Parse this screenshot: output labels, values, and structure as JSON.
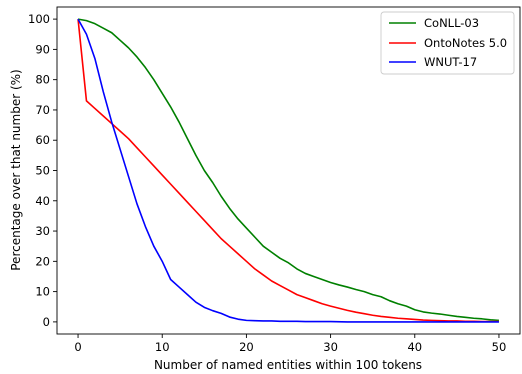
{
  "chart_data": {
    "type": "line",
    "title": "",
    "xlabel": "Number of named entities within 100 tokens",
    "ylabel": "Percentage over that number (%)",
    "xlim": [
      -2.5,
      52.5
    ],
    "ylim": [
      -4,
      104
    ],
    "x_ticks": [
      0,
      10,
      20,
      30,
      40,
      50
    ],
    "y_ticks": [
      0,
      10,
      20,
      30,
      40,
      50,
      60,
      70,
      80,
      90,
      100
    ],
    "grid": false,
    "legend_position": "top-right",
    "series": [
      {
        "name": "CoNLL-03",
        "color": "#008000",
        "x": [
          0,
          1,
          2,
          3,
          4,
          5,
          6,
          7,
          8,
          9,
          10,
          11,
          12,
          13,
          14,
          15,
          16,
          17,
          18,
          19,
          20,
          21,
          22,
          23,
          24,
          25,
          26,
          27,
          28,
          29,
          30,
          31,
          32,
          33,
          34,
          35,
          36,
          37,
          38,
          39,
          40,
          41,
          42,
          43,
          44,
          45,
          46,
          47,
          48,
          49,
          50
        ],
        "y": [
          100,
          99.5,
          98.5,
          97,
          95.5,
          93,
          90.5,
          87.5,
          84,
          80,
          75.5,
          71,
          66,
          60.5,
          55,
          50,
          46,
          41.5,
          37.5,
          34,
          31,
          28,
          25,
          23,
          21,
          19.5,
          17.5,
          16,
          15,
          14,
          13,
          12.2,
          11.5,
          10.7,
          10,
          9,
          8.3,
          7,
          6,
          5.2,
          4,
          3.3,
          2.9,
          2.6,
          2.2,
          1.8,
          1.5,
          1.2,
          1,
          0.7,
          0.5
        ]
      },
      {
        "name": "OntoNotes 5.0",
        "color": "#ff0000",
        "x": [
          0,
          1,
          2,
          3,
          4,
          5,
          6,
          7,
          8,
          9,
          10,
          11,
          12,
          13,
          14,
          15,
          16,
          17,
          18,
          19,
          20,
          21,
          22,
          23,
          24,
          25,
          26,
          27,
          28,
          29,
          30,
          31,
          32,
          33,
          34,
          35,
          36,
          37,
          38,
          39,
          40,
          41,
          42,
          43,
          44,
          45,
          46,
          47,
          48,
          49,
          50
        ],
        "y": [
          100,
          73,
          70.5,
          68,
          65.5,
          63,
          60.5,
          57.5,
          54.5,
          51.5,
          48.5,
          45.5,
          42.5,
          39.5,
          36.5,
          33.5,
          30.5,
          27.5,
          25,
          22.5,
          20,
          17.5,
          15.5,
          13.5,
          12,
          10.5,
          9,
          8,
          7,
          6,
          5.2,
          4.5,
          3.8,
          3.2,
          2.7,
          2.2,
          1.8,
          1.5,
          1.2,
          1,
          0.8,
          0.6,
          0.5,
          0.4,
          0.3,
          0.3,
          0.2,
          0.2,
          0.1,
          0.1,
          0.1
        ]
      },
      {
        "name": "WNUT-17",
        "color": "#0000ff",
        "x": [
          0,
          1,
          2,
          3,
          4,
          5,
          6,
          7,
          8,
          9,
          10,
          11,
          12,
          13,
          14,
          15,
          16,
          17,
          18,
          19,
          20,
          21,
          22,
          23,
          24,
          25,
          26,
          27,
          28,
          29,
          30,
          32,
          35,
          40,
          45,
          50
        ],
        "y": [
          100,
          95,
          87,
          76,
          66,
          57,
          48,
          39,
          31.5,
          25,
          20,
          14,
          11.5,
          9,
          6.5,
          4.8,
          3.7,
          2.8,
          1.6,
          0.9,
          0.5,
          0.4,
          0.3,
          0.3,
          0.2,
          0.2,
          0.2,
          0.1,
          0.1,
          0.1,
          0.1,
          0,
          0,
          0,
          0,
          0
        ]
      }
    ]
  }
}
